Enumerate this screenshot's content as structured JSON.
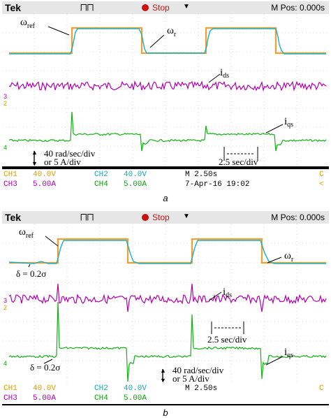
{
  "panels": [
    {
      "id": "a",
      "caption": "a",
      "header": {
        "brand": "Tek",
        "trigger": "⨅⨅",
        "stop": "Stop",
        "mpos": "M Pos: 0.000s"
      },
      "labels": {
        "wref": "ω",
        "wref_sub": "ref",
        "wr": "ω",
        "wr_sub": "r",
        "ids": "i",
        "ids_sub": "ds",
        "iqs": "i",
        "iqs_sub": "qs",
        "scale1": "40 rad/sec/div",
        "scale2": "or 5 A/div",
        "time": "2.5 sec/div"
      },
      "status": {
        "ch1": "CH1",
        "ch1v": "40.0V",
        "ch2": "CH2",
        "ch2v": "40.0V",
        "m": "M 2.50s",
        "ch3": "CH3",
        "ch3v": "5.00A",
        "ch4": "CH4",
        "ch4v": "5.00A",
        "date": "7-Apr-16 19:02",
        "c": "C",
        "lt": "<"
      }
    },
    {
      "id": "b",
      "caption": "b",
      "header": {
        "brand": "Tek",
        "trigger": "⨅⨅",
        "stop": "Stop",
        "mpos": "M Pos: 0.000s"
      },
      "labels": {
        "wref": "ω",
        "wref_sub": "ref",
        "wr": "ω",
        "wr_sub": "r",
        "ids": "i",
        "ids_sub": "ds",
        "iqs": "i",
        "iqs_sub": "qs",
        "delta1": "δ = 0.2σ",
        "delta2": "δ = 0.2σ",
        "scale1": "40 rad/sec/div",
        "scale2": "or 5 A/div",
        "time": "2.5 sec/div"
      },
      "status": {
        "ch1": "CH1",
        "ch1v": "40.0V",
        "ch2": "CH2",
        "ch2v": "40.0V",
        "m": "M 2.50s",
        "ch3": "CH3",
        "ch3v": "5.00A",
        "ch4": "CH4",
        "ch4v": "5.00A",
        "c": "C"
      }
    }
  ],
  "colors": {
    "ch1": "#f0a030",
    "ch2": "#1ab0c0",
    "ch3": "#b000b0",
    "ch4": "#10b010"
  }
}
